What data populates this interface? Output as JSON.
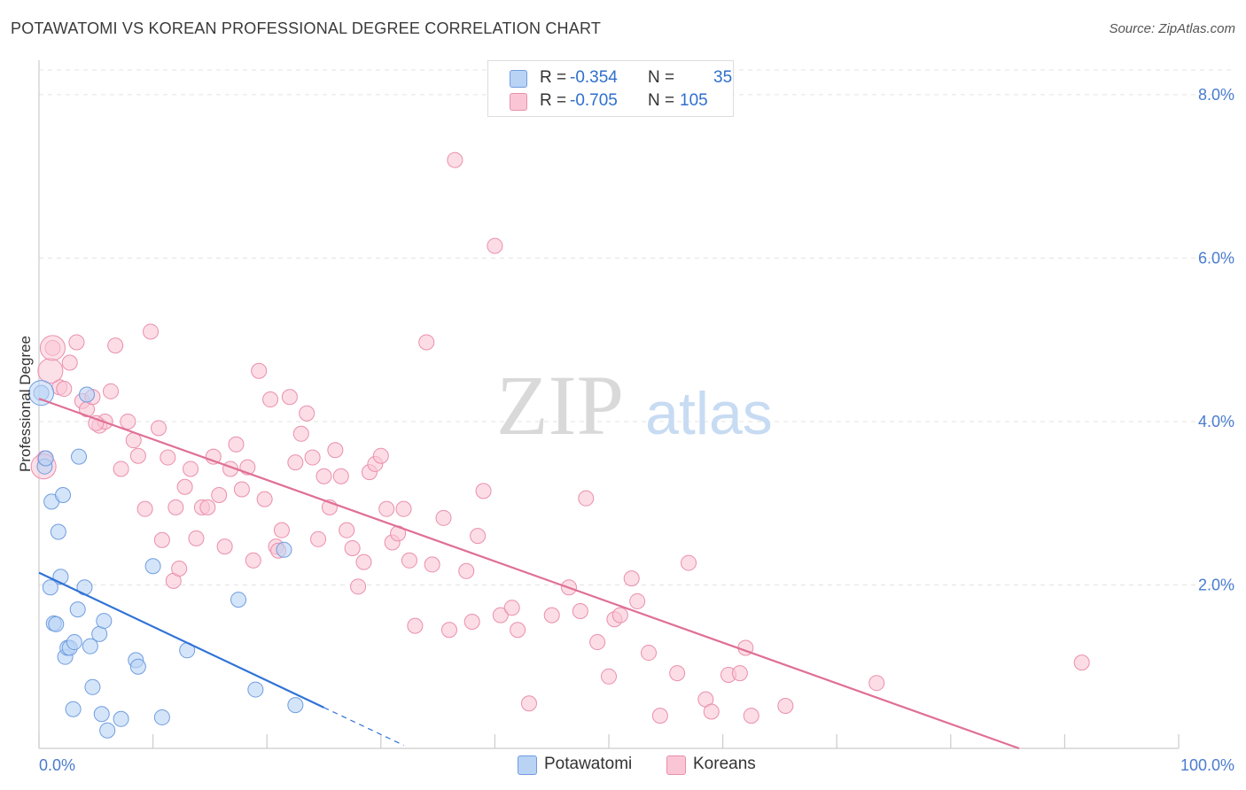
{
  "title": "POTAWATOMI VS KOREAN PROFESSIONAL DEGREE CORRELATION CHART",
  "source": "Source: ZipAtlas.com",
  "watermark": {
    "zip": "ZIP",
    "atlas": "atlas"
  },
  "legend": {
    "rows": [
      {
        "r_label": "R =",
        "r_value": "-0.354",
        "n_label": "N =",
        "n_value": "35",
        "color": "#b9d3f5",
        "stroke": "#6f9de0"
      },
      {
        "r_label": "R =",
        "r_value": "-0.705",
        "n_label": "N =",
        "n_value": "105",
        "color": "#fac6d6",
        "stroke": "#ea8fac"
      }
    ]
  },
  "bottom_legend": {
    "items": [
      {
        "label": "Potawatomi",
        "color": "#b9d3f5"
      },
      {
        "label": "Koreans",
        "color": "#fac6d6"
      }
    ]
  },
  "chart_data": {
    "type": "scatter",
    "title": "POTAWATOMI VS KOREAN PROFESSIONAL DEGREE CORRELATION CHART",
    "xlabel": "",
    "ylabel": "Professional Degree",
    "xlim": [
      0,
      100
    ],
    "ylim": [
      0,
      8.4
    ],
    "x_tick_labels": [
      "0.0%",
      "100.0%"
    ],
    "y_ticks": [
      2,
      4,
      6,
      8
    ],
    "y_tick_labels": [
      "2.0%",
      "4.0%",
      "6.0%",
      "8.0%"
    ],
    "grid": true,
    "series": [
      {
        "name": "Potawatomi",
        "color": "#b9d3f5",
        "stroke": "#6f9de0",
        "line_color": "#2f73d6",
        "trend": {
          "x0": 0,
          "y0": 2.15,
          "x1": 25,
          "y1": 0.5,
          "dash_to_x": 32
        },
        "points": [
          [
            0.2,
            4.35
          ],
          [
            0.5,
            3.45
          ],
          [
            0.6,
            3.55
          ],
          [
            1.0,
            1.97
          ],
          [
            1.1,
            3.02
          ],
          [
            1.3,
            1.53
          ],
          [
            1.5,
            1.52
          ],
          [
            1.7,
            2.65
          ],
          [
            1.9,
            2.1
          ],
          [
            2.1,
            3.1
          ],
          [
            2.3,
            1.12
          ],
          [
            2.5,
            1.23
          ],
          [
            2.7,
            1.23
          ],
          [
            3.0,
            0.48
          ],
          [
            3.1,
            1.3
          ],
          [
            3.4,
            1.7
          ],
          [
            3.5,
            3.57
          ],
          [
            4.0,
            1.97
          ],
          [
            4.2,
            4.33
          ],
          [
            4.5,
            1.25
          ],
          [
            4.7,
            0.75
          ],
          [
            5.3,
            1.4
          ],
          [
            5.5,
            0.42
          ],
          [
            5.7,
            1.56
          ],
          [
            6.0,
            0.22
          ],
          [
            7.2,
            0.36
          ],
          [
            8.5,
            1.08
          ],
          [
            8.7,
            1.0
          ],
          [
            10.0,
            2.23
          ],
          [
            10.8,
            0.38
          ],
          [
            13.0,
            1.2
          ],
          [
            17.5,
            1.82
          ],
          [
            19.0,
            0.72
          ],
          [
            21.5,
            2.43
          ],
          [
            22.5,
            0.53
          ]
        ],
        "large_points": [
          [
            0.2,
            4.35
          ]
        ]
      },
      {
        "name": "Koreans",
        "color": "#fac6d6",
        "stroke": "#ea8fac",
        "line_color": "#e06f96",
        "trend": {
          "x0": 0,
          "y0": 4.28,
          "x1": 86,
          "y1": 0.0
        },
        "points": [
          [
            0.5,
            3.55
          ],
          [
            1.2,
            4.9
          ],
          [
            1.8,
            4.42
          ],
          [
            2.2,
            4.4
          ],
          [
            2.7,
            4.72
          ],
          [
            3.3,
            4.97
          ],
          [
            3.8,
            4.25
          ],
          [
            4.2,
            4.15
          ],
          [
            4.7,
            4.3
          ],
          [
            5.3,
            3.95
          ],
          [
            5.8,
            4.0
          ],
          [
            6.3,
            4.37
          ],
          [
            6.7,
            4.93
          ],
          [
            7.2,
            3.42
          ],
          [
            7.8,
            4.0
          ],
          [
            8.3,
            3.77
          ],
          [
            8.7,
            3.58
          ],
          [
            9.3,
            2.93
          ],
          [
            9.8,
            5.1
          ],
          [
            10.5,
            3.92
          ],
          [
            10.8,
            2.55
          ],
          [
            11.3,
            3.56
          ],
          [
            11.8,
            2.05
          ],
          [
            12.3,
            2.2
          ],
          [
            12.8,
            3.2
          ],
          [
            13.3,
            3.42
          ],
          [
            13.8,
            2.57
          ],
          [
            14.3,
            2.95
          ],
          [
            14.8,
            2.95
          ],
          [
            15.3,
            3.57
          ],
          [
            15.8,
            3.1
          ],
          [
            16.3,
            2.47
          ],
          [
            16.8,
            3.42
          ],
          [
            17.3,
            3.72
          ],
          [
            17.8,
            3.17
          ],
          [
            18.3,
            3.44
          ],
          [
            18.8,
            2.3
          ],
          [
            19.3,
            4.62
          ],
          [
            19.8,
            3.05
          ],
          [
            20.3,
            4.27
          ],
          [
            20.8,
            2.47
          ],
          [
            21.3,
            2.67
          ],
          [
            22.0,
            4.3
          ],
          [
            22.5,
            3.5
          ],
          [
            23.0,
            3.85
          ],
          [
            23.5,
            4.1
          ],
          [
            24.0,
            3.56
          ],
          [
            24.5,
            2.56
          ],
          [
            25.0,
            3.33
          ],
          [
            25.5,
            2.95
          ],
          [
            26.0,
            3.65
          ],
          [
            26.5,
            3.33
          ],
          [
            27.0,
            2.67
          ],
          [
            27.5,
            2.45
          ],
          [
            28.0,
            1.98
          ],
          [
            28.5,
            2.28
          ],
          [
            29.0,
            3.38
          ],
          [
            29.5,
            3.48
          ],
          [
            30.0,
            3.58
          ],
          [
            30.5,
            2.93
          ],
          [
            31.0,
            2.52
          ],
          [
            31.5,
            2.63
          ],
          [
            32.0,
            2.93
          ],
          [
            32.5,
            2.3
          ],
          [
            33.0,
            1.5
          ],
          [
            34.0,
            4.97
          ],
          [
            34.5,
            2.25
          ],
          [
            35.5,
            2.82
          ],
          [
            36.0,
            1.45
          ],
          [
            36.5,
            7.2
          ],
          [
            37.5,
            2.17
          ],
          [
            38.0,
            1.55
          ],
          [
            38.5,
            2.6
          ],
          [
            39.0,
            3.15
          ],
          [
            40.0,
            6.15
          ],
          [
            40.5,
            1.63
          ],
          [
            41.5,
            1.72
          ],
          [
            42.0,
            1.45
          ],
          [
            43.0,
            0.55
          ],
          [
            45.0,
            1.63
          ],
          [
            46.5,
            1.97
          ],
          [
            47.5,
            1.68
          ],
          [
            48.0,
            3.06
          ],
          [
            49.0,
            1.3
          ],
          [
            50.0,
            0.88
          ],
          [
            50.5,
            1.58
          ],
          [
            51.0,
            1.63
          ],
          [
            52.0,
            2.08
          ],
          [
            52.5,
            1.8
          ],
          [
            53.5,
            1.17
          ],
          [
            54.5,
            0.4
          ],
          [
            56.0,
            0.92
          ],
          [
            57.0,
            2.27
          ],
          [
            58.5,
            0.6
          ],
          [
            59.0,
            0.45
          ],
          [
            60.5,
            0.9
          ],
          [
            61.5,
            0.92
          ],
          [
            62.0,
            1.23
          ],
          [
            62.5,
            0.4
          ],
          [
            65.5,
            0.52
          ],
          [
            73.5,
            0.8
          ],
          [
            91.5,
            1.05
          ],
          [
            5.0,
            3.98
          ],
          [
            12.0,
            2.95
          ],
          [
            21.0,
            2.42
          ]
        ],
        "large_points": [
          [
            0.4,
            3.45
          ],
          [
            1.0,
            4.62
          ],
          [
            1.2,
            4.9
          ]
        ]
      }
    ]
  }
}
